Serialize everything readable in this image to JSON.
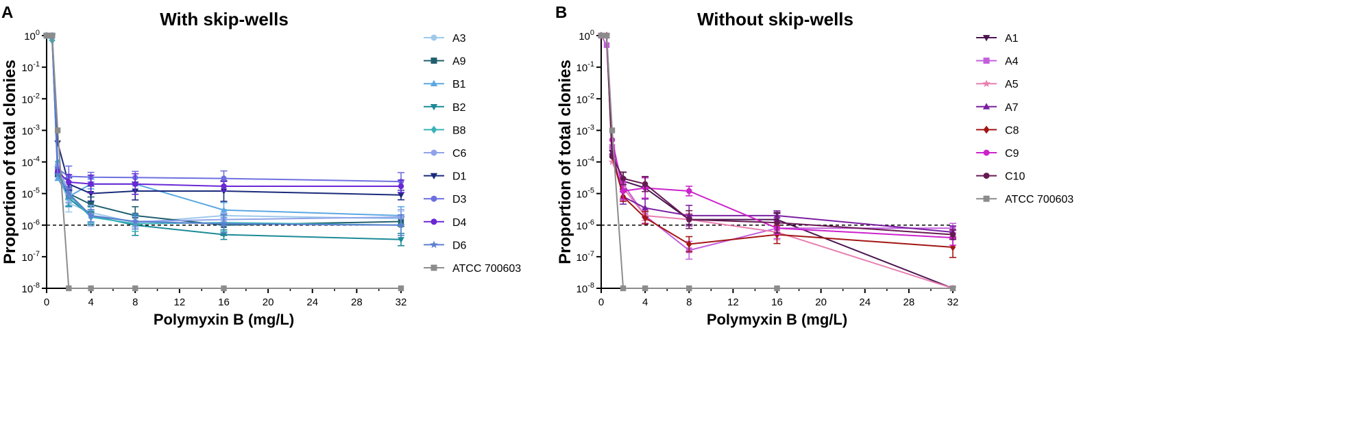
{
  "figure": {
    "panel_labels": [
      "A",
      "B"
    ]
  },
  "chart_data": [
    {
      "type": "line",
      "panel": "A",
      "title": "With skip-wells",
      "xlabel": "Polymyxin B (mg/L)",
      "ylabel": "Proportion of total clonies",
      "xlim": [
        0,
        32
      ],
      "ylim_log10": [
        -8,
        0
      ],
      "xticks": [
        0,
        4,
        8,
        12,
        16,
        20,
        24,
        28,
        32
      ],
      "ytick_labels": [
        {
          "base": "10",
          "exp": "-8"
        },
        {
          "base": "10",
          "exp": "-7"
        },
        {
          "base": "10",
          "exp": "-6"
        },
        {
          "base": "10",
          "exp": "-5"
        },
        {
          "base": "10",
          "exp": "-4"
        },
        {
          "base": "10",
          "exp": "-3"
        },
        {
          "base": "10",
          "exp": "-2"
        },
        {
          "base": "10",
          "exp": "-1"
        },
        {
          "base": "10",
          "exp": "0"
        }
      ],
      "reference_line": 1e-06,
      "x": [
        0,
        0.5,
        1,
        2,
        4,
        8,
        16,
        32
      ],
      "series": [
        {
          "name": "A3",
          "color": "#9ec9ea",
          "marker": "circle",
          "values": [
            1,
            1,
            5e-05,
            5e-06,
            2.5e-06,
            1.2e-06,
            2e-06,
            1.6e-06
          ]
        },
        {
          "name": "A9",
          "color": "#1f5f6e",
          "marker": "square",
          "values": [
            1,
            1,
            4e-05,
            1e-05,
            4.5e-06,
            2e-06,
            1e-06,
            1.3e-06
          ]
        },
        {
          "name": "B1",
          "color": "#5aa7e3",
          "marker": "triangle-up",
          "values": [
            1,
            0.8,
            3e-05,
            8e-06,
            2e-05,
            2e-05,
            3e-06,
            2e-06
          ]
        },
        {
          "name": "B2",
          "color": "#1b8a96",
          "marker": "triangle-down",
          "values": [
            1,
            0.9,
            6e-05,
            7e-06,
            2e-06,
            1e-06,
            5e-07,
            3.5e-07
          ]
        },
        {
          "name": "B8",
          "color": "#3ab3b8",
          "marker": "diamond",
          "values": [
            1,
            0.7,
            0.0001,
            9e-06,
            1.8e-06,
            1.1e-06,
            1.2e-06,
            1e-06
          ]
        },
        {
          "name": "C6",
          "color": "#8fa3ea",
          "marker": "circle",
          "values": [
            1,
            1,
            8e-05,
            1e-05,
            2e-06,
            1.3e-06,
            1.5e-06,
            1.8e-06
          ]
        },
        {
          "name": "D1",
          "color": "#1a2a7a",
          "marker": "triangle-down",
          "values": [
            1,
            1,
            0.0004,
            2e-05,
            1e-05,
            1.2e-05,
            1.2e-05,
            9e-06
          ]
        },
        {
          "name": "D3",
          "color": "#6d6fe0",
          "marker": "circle",
          "values": [
            1,
            1,
            6e-05,
            3.5e-05,
            3.3e-05,
            3.2e-05,
            3e-05,
            2.4e-05
          ]
        },
        {
          "name": "D4",
          "color": "#6a27d6",
          "marker": "circle",
          "values": [
            1,
            1,
            5e-05,
            2.3e-05,
            2e-05,
            2e-05,
            1.7e-05,
            1.7e-05
          ]
        },
        {
          "name": "D6",
          "color": "#5b7fd0",
          "marker": "star",
          "values": [
            1,
            1,
            4e-05,
            1e-05,
            2e-06,
            1.3e-06,
            1.1e-06,
            1e-06
          ]
        },
        {
          "name": "ATCC 700603",
          "color": "#8c8c8c",
          "marker": "square",
          "values": [
            1,
            1,
            0.001,
            1e-08,
            1e-08,
            1e-08,
            1e-08,
            1e-08
          ]
        }
      ]
    },
    {
      "type": "line",
      "panel": "B",
      "title": "Without skip-wells",
      "xlabel": "Polymyxin B (mg/L)",
      "ylabel": "Proportion of total clonies",
      "xlim": [
        0,
        32
      ],
      "ylim_log10": [
        -8,
        0
      ],
      "xticks": [
        0,
        4,
        8,
        12,
        16,
        20,
        24,
        28,
        32
      ],
      "ytick_labels": [
        {
          "base": "10",
          "exp": "-8"
        },
        {
          "base": "10",
          "exp": "-7"
        },
        {
          "base": "10",
          "exp": "-6"
        },
        {
          "base": "10",
          "exp": "-5"
        },
        {
          "base": "10",
          "exp": "-4"
        },
        {
          "base": "10",
          "exp": "-3"
        },
        {
          "base": "10",
          "exp": "-2"
        },
        {
          "base": "10",
          "exp": "-1"
        },
        {
          "base": "10",
          "exp": "0"
        }
      ],
      "reference_line": 1e-06,
      "x": [
        0,
        0.5,
        1,
        2,
        4,
        8,
        16,
        32
      ],
      "series": [
        {
          "name": "A1",
          "color": "#4a1450",
          "marker": "triangle-down",
          "values": [
            1,
            1,
            0.0002,
            2.5e-05,
            1.5e-05,
            1.5e-06,
            1.5e-06,
            1e-08
          ]
        },
        {
          "name": "A4",
          "color": "#c35fdc",
          "marker": "square",
          "values": [
            1,
            0.5,
            0.0003,
            2e-05,
            2e-06,
            1.6e-07,
            8e-07,
            8e-07
          ]
        },
        {
          "name": "A5",
          "color": "#e87fb0",
          "marker": "star",
          "values": [
            1,
            1,
            0.0001,
            1.5e-05,
            2e-06,
            1.5e-06,
            6e-07,
            1e-08
          ]
        },
        {
          "name": "A7",
          "color": "#7a1fa2",
          "marker": "triangle-up",
          "values": [
            1,
            1,
            0.0002,
            8e-06,
            3.5e-06,
            2e-06,
            2e-06,
            6e-07
          ]
        },
        {
          "name": "C8",
          "color": "#a31515",
          "marker": "diamond",
          "values": [
            1,
            1,
            0.00015,
            8e-06,
            1.7e-06,
            2.5e-07,
            5e-07,
            2e-07
          ]
        },
        {
          "name": "C9",
          "color": "#cc22cc",
          "marker": "circle",
          "values": [
            1,
            1,
            0.0005,
            1.2e-05,
            1.5e-05,
            1.2e-05,
            8e-07,
            4e-07
          ]
        },
        {
          "name": "C10",
          "color": "#661a52",
          "marker": "circle",
          "values": [
            1,
            1,
            0.00015,
            3e-05,
            2e-05,
            1.5e-06,
            1.2e-06,
            5e-07
          ]
        },
        {
          "name": "ATCC 700603",
          "color": "#8c8c8c",
          "marker": "square",
          "values": [
            1,
            1,
            0.001,
            1e-08,
            1e-08,
            1e-08,
            1e-08,
            1e-08
          ]
        }
      ]
    }
  ]
}
